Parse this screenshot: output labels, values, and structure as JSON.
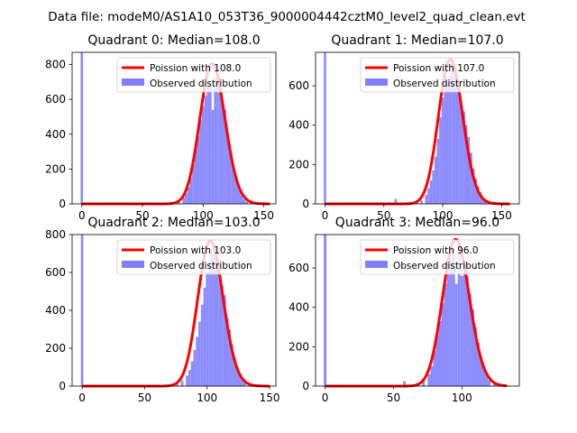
{
  "suptitle": "Data file: modeM0/AS1A10_053T36_9000004442cztM0_level2_quad_clean.evt",
  "colors": {
    "poisson": "#ff0000",
    "hist": "#7f7fff",
    "axis": "#000000",
    "legend_edge": "#cccccc"
  },
  "chart_data": [
    {
      "type": "histogram+line",
      "title": "Quadrant 0: Median=108.0",
      "median": 108.0,
      "xlim": [
        -8,
        160
      ],
      "ylim": [
        0,
        870
      ],
      "xticks": [
        0,
        50,
        100,
        150
      ],
      "yticks": [
        0,
        200,
        400,
        600,
        800
      ],
      "legend": {
        "line": "Poission with 108.0",
        "hist": "Observed distribution",
        "loc": "upper right"
      },
      "zero_bin": 870,
      "bins": [
        [
          60,
          5
        ],
        [
          70,
          6
        ],
        [
          76,
          12
        ],
        [
          80,
          18
        ],
        [
          84,
          35
        ],
        [
          86,
          60
        ],
        [
          88,
          95
        ],
        [
          90,
          150
        ],
        [
          92,
          225
        ],
        [
          94,
          310
        ],
        [
          96,
          390
        ],
        [
          98,
          480
        ],
        [
          100,
          560
        ],
        [
          102,
          620
        ],
        [
          104,
          680
        ],
        [
          106,
          700
        ],
        [
          108,
          540
        ],
        [
          110,
          720
        ],
        [
          112,
          700
        ],
        [
          114,
          640
        ],
        [
          116,
          590
        ],
        [
          118,
          540
        ],
        [
          120,
          400
        ],
        [
          122,
          340
        ],
        [
          124,
          250
        ],
        [
          126,
          180
        ],
        [
          128,
          120
        ],
        [
          130,
          80
        ],
        [
          132,
          50
        ],
        [
          134,
          25
        ],
        [
          136,
          12
        ],
        [
          140,
          4
        ]
      ],
      "poisson_peak": 805,
      "poisson_range": [
        0,
        155
      ]
    },
    {
      "type": "histogram+line",
      "title": "Quadrant 1: Median=107.0",
      "median": 107.0,
      "xlim": [
        -8,
        165
      ],
      "ylim": [
        0,
        770
      ],
      "xticks": [
        0,
        50,
        100,
        150
      ],
      "yticks": [
        0,
        200,
        400,
        600
      ],
      "legend": {
        "line": "Poission with 107.0",
        "hist": "Observed distribution",
        "loc": "upper right"
      },
      "zero_bin": 770,
      "bins": [
        [
          60,
          25
        ],
        [
          78,
          10
        ],
        [
          82,
          18
        ],
        [
          86,
          45
        ],
        [
          88,
          80
        ],
        [
          90,
          120
        ],
        [
          92,
          170
        ],
        [
          94,
          240
        ],
        [
          96,
          330
        ],
        [
          98,
          440
        ],
        [
          100,
          540
        ],
        [
          102,
          600
        ],
        [
          104,
          620
        ],
        [
          106,
          650
        ],
        [
          108,
          720
        ],
        [
          110,
          690
        ],
        [
          112,
          600
        ],
        [
          114,
          570
        ],
        [
          116,
          500
        ],
        [
          118,
          470
        ],
        [
          120,
          400
        ],
        [
          122,
          340
        ],
        [
          124,
          260
        ],
        [
          126,
          180
        ],
        [
          128,
          130
        ],
        [
          130,
          90
        ],
        [
          132,
          60
        ],
        [
          134,
          30
        ],
        [
          136,
          15
        ],
        [
          140,
          5
        ]
      ],
      "poisson_peak": 735,
      "poisson_range": [
        0,
        157
      ]
    },
    {
      "type": "histogram+line",
      "title": "Quadrant 2: Median=103.0",
      "median": 103.0,
      "xlim": [
        -8,
        155
      ],
      "ylim": [
        0,
        800
      ],
      "xticks": [
        0,
        50,
        100,
        150
      ],
      "yticks": [
        0,
        200,
        400,
        600,
        800
      ],
      "legend": {
        "line": "Poission with 103.0",
        "hist": "Observed distribution",
        "loc": "upper right"
      },
      "zero_bin": 800,
      "bins": [
        [
          76,
          20
        ],
        [
          80,
          30
        ],
        [
          84,
          55
        ],
        [
          86,
          85
        ],
        [
          88,
          130
        ],
        [
          90,
          190
        ],
        [
          92,
          260
        ],
        [
          94,
          340
        ],
        [
          96,
          430
        ],
        [
          98,
          520
        ],
        [
          100,
          600
        ],
        [
          102,
          660
        ],
        [
          104,
          720
        ],
        [
          106,
          690
        ],
        [
          108,
          650
        ],
        [
          110,
          600
        ],
        [
          112,
          530
        ],
        [
          114,
          480
        ],
        [
          116,
          360
        ],
        [
          118,
          300
        ],
        [
          120,
          220
        ],
        [
          122,
          150
        ],
        [
          124,
          100
        ],
        [
          126,
          60
        ],
        [
          128,
          35
        ],
        [
          130,
          18
        ],
        [
          134,
          8
        ]
      ],
      "poisson_peak": 765,
      "poisson_range": [
        0,
        150
      ]
    },
    {
      "type": "histogram+line",
      "title": "Quadrant 3: Median=96.0",
      "median": 96.0,
      "xlim": [
        -7,
        142
      ],
      "ylim": [
        0,
        770
      ],
      "xticks": [
        0,
        50,
        100
      ],
      "yticks": [
        0,
        200,
        400,
        600
      ],
      "legend": {
        "line": "Poission with 96.0",
        "hist": "Observed distribution",
        "loc": "upper right"
      },
      "zero_bin": 770,
      "bins": [
        [
          58,
          25
        ],
        [
          68,
          15
        ],
        [
          72,
          30
        ],
        [
          76,
          60
        ],
        [
          78,
          100
        ],
        [
          80,
          180
        ],
        [
          82,
          260
        ],
        [
          84,
          330
        ],
        [
          86,
          420
        ],
        [
          88,
          520
        ],
        [
          90,
          600
        ],
        [
          92,
          640
        ],
        [
          94,
          700
        ],
        [
          96,
          520
        ],
        [
          98,
          680
        ],
        [
          100,
          560
        ],
        [
          102,
          640
        ],
        [
          104,
          560
        ],
        [
          106,
          470
        ],
        [
          108,
          390
        ],
        [
          110,
          300
        ],
        [
          112,
          220
        ],
        [
          114,
          150
        ],
        [
          116,
          100
        ],
        [
          118,
          60
        ],
        [
          120,
          30
        ],
        [
          124,
          10
        ]
      ],
      "poisson_peak": 745,
      "poisson_range": [
        0,
        133
      ]
    }
  ]
}
